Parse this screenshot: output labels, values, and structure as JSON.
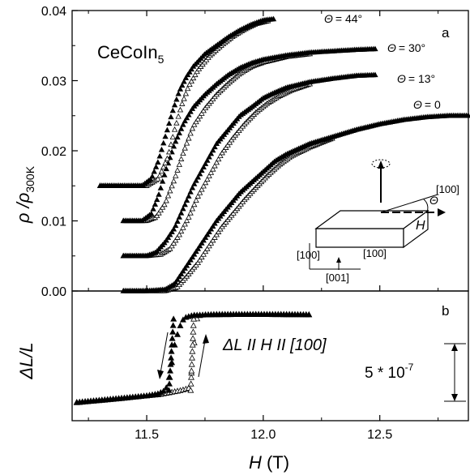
{
  "chart_data": [
    {
      "panel": "a",
      "type": "scatter",
      "title": "CeCoIn5",
      "title_main": "CeCoIn",
      "title_sub": "5",
      "panel_label": "a",
      "xlabel": "H (T)",
      "ylabel": "ρ/ρ300K",
      "ylabel_main": "ρ /ρ",
      "ylabel_sub": "300K",
      "xlim": [
        11.18,
        12.88
      ],
      "ylim": [
        0,
        0.04
      ],
      "yticks": [
        0.0,
        0.01,
        0.02,
        0.03,
        0.04
      ],
      "ytick_labels": [
        "0.00",
        "0.01",
        "0.02",
        "0.03",
        "0.04"
      ],
      "series": [
        {
          "name": "Θ = 0",
          "label_theta": "Θ",
          "label_value": "= 0",
          "filled": {
            "x": [
              11.4,
              11.5,
              11.58,
              11.62,
              11.66,
              11.7,
              11.75,
              11.8,
              11.85,
              11.9,
              11.95,
              12.0,
              12.05,
              12.1,
              12.2,
              12.3,
              12.4,
              12.5,
              12.6,
              12.7,
              12.8,
              12.88
            ],
            "y": [
              0.0,
              0.0,
              0.0002,
              0.001,
              0.003,
              0.005,
              0.0075,
              0.01,
              0.012,
              0.014,
              0.0155,
              0.017,
              0.0185,
              0.0195,
              0.021,
              0.022,
              0.023,
              0.0238,
              0.0244,
              0.0248,
              0.025,
              0.025
            ]
          },
          "open": {
            "x": [
              11.4,
              11.5,
              11.58,
              11.63,
              11.67,
              11.72,
              11.77,
              11.82,
              11.87,
              11.92,
              11.97,
              12.02,
              12.07,
              12.12,
              12.2,
              12.3
            ],
            "y": [
              0.0,
              0.0,
              0.0,
              0.0005,
              0.002,
              0.004,
              0.0065,
              0.009,
              0.011,
              0.013,
              0.0148,
              0.0165,
              0.018,
              0.0192,
              0.0205,
              0.0218
            ]
          }
        },
        {
          "name": "Θ = 13°",
          "label_theta": "Θ",
          "label_value": "= 13°",
          "filled": {
            "x": [
              11.4,
              11.5,
              11.54,
              11.58,
              11.62,
              11.66,
              11.7,
              11.75,
              11.8,
              11.85,
              11.9,
              11.95,
              12.0,
              12.05,
              12.1,
              12.2,
              12.3,
              12.4,
              12.48
            ],
            "y": [
              0.005,
              0.005,
              0.0055,
              0.007,
              0.009,
              0.012,
              0.015,
              0.018,
              0.021,
              0.023,
              0.025,
              0.0262,
              0.0275,
              0.0283,
              0.029,
              0.0298,
              0.0303,
              0.0307,
              0.0308
            ]
          },
          "open": {
            "x": [
              11.4,
              11.5,
              11.56,
              11.6,
              11.64,
              11.68,
              11.72,
              11.77,
              11.82,
              11.87,
              11.92,
              11.97,
              12.02,
              12.07,
              12.12,
              12.2
            ],
            "y": [
              0.005,
              0.005,
              0.0052,
              0.006,
              0.008,
              0.0105,
              0.0135,
              0.0165,
              0.0195,
              0.0218,
              0.0238,
              0.0255,
              0.0268,
              0.0278,
              0.0286,
              0.0295
            ]
          }
        },
        {
          "name": "Θ = 30°",
          "label_theta": "Θ",
          "label_value": "= 30°",
          "filled": {
            "x": [
              11.4,
              11.48,
              11.52,
              11.55,
              11.58,
              11.62,
              11.66,
              11.7,
              11.75,
              11.8,
              11.85,
              11.9,
              11.95,
              12.0,
              12.1,
              12.2,
              12.3,
              12.4,
              12.48
            ],
            "y": [
              0.01,
              0.01,
              0.011,
              0.0135,
              0.017,
              0.021,
              0.024,
              0.0262,
              0.028,
              0.0295,
              0.0308,
              0.0318,
              0.0325,
              0.033,
              0.0336,
              0.034,
              0.0342,
              0.0344,
              0.0345
            ]
          },
          "open": {
            "x": [
              11.4,
              11.5,
              11.54,
              11.58,
              11.62,
              11.66,
              11.7,
              11.75,
              11.8,
              11.85,
              11.9,
              11.95,
              12.0,
              12.1,
              12.2
            ],
            "y": [
              0.01,
              0.01,
              0.0105,
              0.0125,
              0.016,
              0.02,
              0.0235,
              0.026,
              0.028,
              0.0296,
              0.031,
              0.032,
              0.0326,
              0.0334,
              0.0338
            ]
          }
        },
        {
          "name": "Θ = 44°",
          "label_theta": "Θ",
          "label_value": "= 44°",
          "filled": {
            "x": [
              11.3,
              11.4,
              11.48,
              11.52,
              11.55,
              11.58,
              11.61,
              11.64,
              11.67,
              11.7,
              11.75,
              11.8,
              11.85,
              11.9,
              11.95,
              12.0,
              12.05
            ],
            "y": [
              0.015,
              0.015,
              0.015,
              0.016,
              0.0185,
              0.022,
              0.0255,
              0.0285,
              0.0305,
              0.032,
              0.0338,
              0.035,
              0.0362,
              0.0372,
              0.038,
              0.0386,
              0.0388
            ]
          },
          "open": {
            "x": [
              11.3,
              11.4,
              11.5,
              11.55,
              11.59,
              11.62,
              11.65,
              11.68,
              11.72,
              11.77,
              11.82,
              11.87,
              11.92,
              11.97,
              12.02
            ],
            "y": [
              0.015,
              0.015,
              0.015,
              0.016,
              0.019,
              0.023,
              0.0265,
              0.0292,
              0.0315,
              0.0335,
              0.035,
              0.0363,
              0.0373,
              0.0381,
              0.0385
            ]
          }
        }
      ],
      "inset": {
        "labels": [
          "[100]",
          "Θ",
          "H",
          "[100]",
          "[100]",
          "[001]"
        ]
      }
    },
    {
      "panel": "b",
      "type": "scatter",
      "panel_label": "b",
      "xlabel": "H (T)",
      "xlabel_main": "H",
      "xlabel_unit": " (T)",
      "ylabel": "ΔL/L",
      "xlim": [
        11.18,
        12.88
      ],
      "xticks": [
        11.5,
        12.0,
        12.5
      ],
      "xtick_labels": [
        "11.5",
        "12.0",
        "12.5"
      ],
      "annotation": "ΔL II H II [100]",
      "scale_bar_label": "5 * 10-7",
      "scale_bar_main": "5 * 10",
      "scale_bar_exp": "-7",
      "scale_bar_value": 5e-07,
      "ylim_rel": [
        -5.0,
        1.0
      ],
      "series": [
        {
          "name": "up",
          "marker": "open-triangle",
          "x": [
            11.2,
            11.3,
            11.4,
            11.5,
            11.55,
            11.6,
            11.65,
            11.68,
            11.69,
            11.7,
            11.71,
            11.72,
            11.75,
            11.8,
            11.9,
            12.0,
            12.1,
            12.2
          ],
          "y": [
            -4.15,
            -4.05,
            -3.95,
            -3.85,
            -3.8,
            -3.7,
            -3.6,
            -3.5,
            -3.0,
            -2.0,
            -0.5,
            -0.15,
            -0.1,
            -0.08,
            -0.08,
            -0.09,
            -0.1,
            -0.1
          ]
        },
        {
          "name": "down",
          "marker": "filled-triangle",
          "x": [
            12.2,
            12.1,
            12.0,
            11.9,
            11.8,
            11.7,
            11.66,
            11.64,
            11.62,
            11.61,
            11.6,
            11.59,
            11.58,
            11.55,
            11.5,
            11.4,
            11.3,
            11.2
          ],
          "y": [
            -0.1,
            -0.08,
            -0.08,
            -0.09,
            -0.1,
            -0.12,
            -0.25,
            -0.7,
            -1.5,
            -2.2,
            -2.8,
            -3.3,
            -3.6,
            -3.75,
            -3.85,
            -3.97,
            -4.07,
            -4.17
          ]
        }
      ]
    }
  ]
}
